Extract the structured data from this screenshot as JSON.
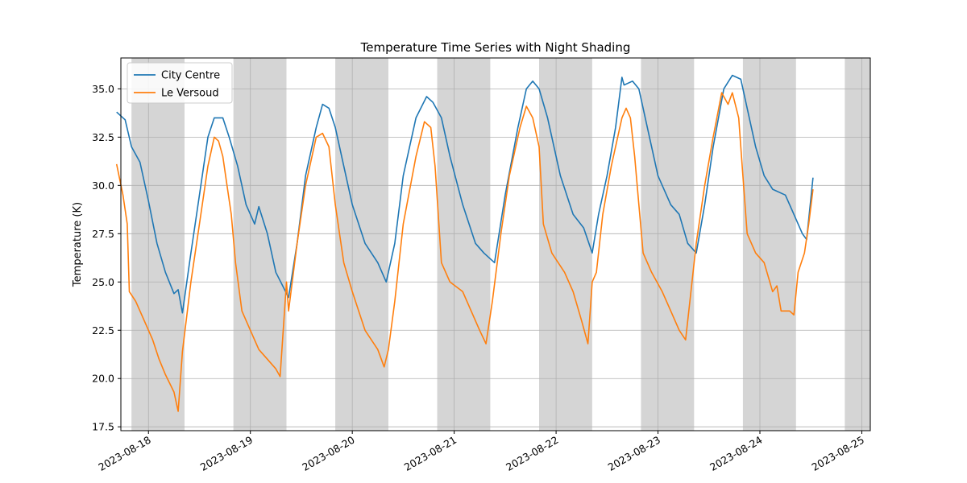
{
  "chart_data": {
    "type": "line",
    "title": "Temperature Time Series with Night Shading",
    "xlabel": "",
    "ylabel": "Temperature (K)",
    "x_range": [
      "2023-08-17T17:30",
      "2023-08-25T02:00"
    ],
    "ylim": [
      17.3,
      36.6
    ],
    "y_ticks": [
      17.5,
      20.0,
      22.5,
      25.0,
      27.5,
      30.0,
      32.5,
      35.0
    ],
    "y_tick_labels": [
      "17.5",
      "20.0",
      "22.5",
      "25.0",
      "27.5",
      "30.0",
      "32.5",
      "35.0"
    ],
    "x_ticks": [
      "2023-08-18",
      "2023-08-19",
      "2023-08-20",
      "2023-08-21",
      "2023-08-22",
      "2023-08-23",
      "2023-08-24",
      "2023-08-25"
    ],
    "grid": true,
    "legend_position": "top-left",
    "night_shading": [
      [
        "2023-08-17T20:00",
        "2023-08-18T08:30"
      ],
      [
        "2023-08-18T20:00",
        "2023-08-19T08:30"
      ],
      [
        "2023-08-19T20:00",
        "2023-08-20T08:30"
      ],
      [
        "2023-08-20T20:00",
        "2023-08-21T08:30"
      ],
      [
        "2023-08-21T20:00",
        "2023-08-22T08:30"
      ],
      [
        "2023-08-22T20:00",
        "2023-08-23T08:30"
      ],
      [
        "2023-08-23T20:00",
        "2023-08-24T08:30"
      ],
      [
        "2023-08-24T20:00",
        "2023-08-25T08:30"
      ]
    ],
    "shade_color": "#d3d3d3",
    "series": [
      {
        "name": "City Centre",
        "color": "#1f77b4",
        "points": [
          [
            "2023-08-17T16:30",
            33.8
          ],
          [
            "2023-08-17T18:30",
            33.4
          ],
          [
            "2023-08-17T20:00",
            32.0
          ],
          [
            "2023-08-17T22:00",
            31.2
          ],
          [
            "2023-08-18T00:00",
            29.2
          ],
          [
            "2023-08-18T02:00",
            27.0
          ],
          [
            "2023-08-18T04:00",
            25.5
          ],
          [
            "2023-08-18T06:00",
            24.4
          ],
          [
            "2023-08-18T07:00",
            24.6
          ],
          [
            "2023-08-18T08:00",
            23.4
          ],
          [
            "2023-08-18T10:00",
            26.5
          ],
          [
            "2023-08-18T12:00",
            29.5
          ],
          [
            "2023-08-18T14:00",
            32.5
          ],
          [
            "2023-08-18T15:30",
            33.5
          ],
          [
            "2023-08-18T17:30",
            33.5
          ],
          [
            "2023-08-18T19:00",
            32.5
          ],
          [
            "2023-08-18T21:00",
            31.0
          ],
          [
            "2023-08-18T23:00",
            29.0
          ],
          [
            "2023-08-19T01:00",
            28.0
          ],
          [
            "2023-08-19T02:00",
            28.9
          ],
          [
            "2023-08-19T04:00",
            27.5
          ],
          [
            "2023-08-19T06:00",
            25.5
          ],
          [
            "2023-08-19T09:00",
            24.2
          ],
          [
            "2023-08-19T11:00",
            27.0
          ],
          [
            "2023-08-19T13:00",
            30.5
          ],
          [
            "2023-08-19T15:30",
            33.0
          ],
          [
            "2023-08-19T17:00",
            34.2
          ],
          [
            "2023-08-19T18:30",
            34.0
          ],
          [
            "2023-08-19T20:00",
            33.0
          ],
          [
            "2023-08-19T22:00",
            31.0
          ],
          [
            "2023-08-20T00:00",
            29.0
          ],
          [
            "2023-08-20T03:00",
            27.0
          ],
          [
            "2023-08-20T06:00",
            26.0
          ],
          [
            "2023-08-20T08:00",
            25.0
          ],
          [
            "2023-08-20T10:00",
            27.0
          ],
          [
            "2023-08-20T12:00",
            30.5
          ],
          [
            "2023-08-20T15:00",
            33.5
          ],
          [
            "2023-08-20T17:30",
            34.6
          ],
          [
            "2023-08-20T19:00",
            34.3
          ],
          [
            "2023-08-20T21:00",
            33.5
          ],
          [
            "2023-08-20T23:00",
            31.5
          ],
          [
            "2023-08-21T02:00",
            29.0
          ],
          [
            "2023-08-21T05:00",
            27.0
          ],
          [
            "2023-08-21T07:00",
            26.5
          ],
          [
            "2023-08-21T09:30",
            26.0
          ],
          [
            "2023-08-21T12:00",
            29.5
          ],
          [
            "2023-08-21T15:00",
            33.0
          ],
          [
            "2023-08-21T17:00",
            35.0
          ],
          [
            "2023-08-21T18:30",
            35.4
          ],
          [
            "2023-08-21T20:00",
            35.0
          ],
          [
            "2023-08-21T22:00",
            33.5
          ],
          [
            "2023-08-22T01:00",
            30.5
          ],
          [
            "2023-08-22T04:00",
            28.5
          ],
          [
            "2023-08-22T06:30",
            27.8
          ],
          [
            "2023-08-22T08:30",
            26.5
          ],
          [
            "2023-08-22T10:00",
            28.5
          ],
          [
            "2023-08-22T12:00",
            30.5
          ],
          [
            "2023-08-22T14:00",
            33.0
          ],
          [
            "2023-08-22T15:30",
            35.6
          ],
          [
            "2023-08-22T16:00",
            35.2
          ],
          [
            "2023-08-22T18:00",
            35.4
          ],
          [
            "2023-08-22T19:30",
            35.0
          ],
          [
            "2023-08-22T21:00",
            33.5
          ],
          [
            "2023-08-23T00:00",
            30.5
          ],
          [
            "2023-08-23T03:00",
            29.0
          ],
          [
            "2023-08-23T05:00",
            28.5
          ],
          [
            "2023-08-23T07:00",
            27.0
          ],
          [
            "2023-08-23T09:00",
            26.5
          ],
          [
            "2023-08-23T11:00",
            29.0
          ],
          [
            "2023-08-23T13:00",
            32.0
          ],
          [
            "2023-08-23T15:30",
            35.0
          ],
          [
            "2023-08-23T17:30",
            35.7
          ],
          [
            "2023-08-23T19:30",
            35.5
          ],
          [
            "2023-08-23T21:00",
            34.0
          ],
          [
            "2023-08-23T23:00",
            32.0
          ],
          [
            "2023-08-24T01:00",
            30.5
          ],
          [
            "2023-08-24T03:00",
            29.8
          ],
          [
            "2023-08-24T06:00",
            29.5
          ],
          [
            "2023-08-24T08:00",
            28.5
          ],
          [
            "2023-08-24T10:00",
            27.5
          ],
          [
            "2023-08-24T11:00",
            27.2
          ],
          [
            "2023-08-24T12:30",
            30.4
          ]
        ]
      },
      {
        "name": "Le Versoud",
        "color": "#ff7f0e",
        "points": [
          [
            "2023-08-17T16:30",
            31.1
          ],
          [
            "2023-08-17T18:00",
            29.5
          ],
          [
            "2023-08-17T19:00",
            28.0
          ],
          [
            "2023-08-17T19:30",
            24.5
          ],
          [
            "2023-08-17T21:00",
            24.0
          ],
          [
            "2023-08-17T23:00",
            23.0
          ],
          [
            "2023-08-18T01:00",
            22.0
          ],
          [
            "2023-08-18T02:30",
            21.0
          ],
          [
            "2023-08-18T04:00",
            20.2
          ],
          [
            "2023-08-18T06:00",
            19.3
          ],
          [
            "2023-08-18T07:00",
            18.3
          ],
          [
            "2023-08-18T08:00",
            21.4
          ],
          [
            "2023-08-18T10:00",
            25.0
          ],
          [
            "2023-08-18T12:00",
            28.0
          ],
          [
            "2023-08-18T14:00",
            31.0
          ],
          [
            "2023-08-18T15:30",
            32.5
          ],
          [
            "2023-08-18T16:30",
            32.3
          ],
          [
            "2023-08-18T17:30",
            31.5
          ],
          [
            "2023-08-18T18:30",
            30.0
          ],
          [
            "2023-08-18T19:30",
            28.5
          ],
          [
            "2023-08-18T20:30",
            26.0
          ],
          [
            "2023-08-18T22:00",
            23.5
          ],
          [
            "2023-08-19T00:00",
            22.5
          ],
          [
            "2023-08-19T02:00",
            21.5
          ],
          [
            "2023-08-19T04:00",
            21.0
          ],
          [
            "2023-08-19T06:00",
            20.5
          ],
          [
            "2023-08-19T07:00",
            20.1
          ],
          [
            "2023-08-19T08:30",
            25.0
          ],
          [
            "2023-08-19T09:00",
            23.5
          ],
          [
            "2023-08-19T11:00",
            27.0
          ],
          [
            "2023-08-19T13:00",
            30.0
          ],
          [
            "2023-08-19T15:30",
            32.5
          ],
          [
            "2023-08-19T17:00",
            32.7
          ],
          [
            "2023-08-19T18:30",
            32.0
          ],
          [
            "2023-08-19T20:00",
            29.0
          ],
          [
            "2023-08-19T22:00",
            26.0
          ],
          [
            "2023-08-20T00:00",
            24.5
          ],
          [
            "2023-08-20T03:00",
            22.5
          ],
          [
            "2023-08-20T06:00",
            21.5
          ],
          [
            "2023-08-20T07:30",
            20.6
          ],
          [
            "2023-08-20T08:30",
            21.5
          ],
          [
            "2023-08-20T10:00",
            24.0
          ],
          [
            "2023-08-20T12:00",
            28.0
          ],
          [
            "2023-08-20T15:00",
            31.5
          ],
          [
            "2023-08-20T17:00",
            33.3
          ],
          [
            "2023-08-20T18:30",
            33.0
          ],
          [
            "2023-08-20T19:30",
            31.0
          ],
          [
            "2023-08-20T21:00",
            26.0
          ],
          [
            "2023-08-20T23:00",
            25.0
          ],
          [
            "2023-08-21T02:00",
            24.5
          ],
          [
            "2023-08-21T04:00",
            23.5
          ],
          [
            "2023-08-21T06:00",
            22.5
          ],
          [
            "2023-08-21T07:30",
            21.8
          ],
          [
            "2023-08-21T09:00",
            24.0
          ],
          [
            "2023-08-21T11:00",
            27.5
          ],
          [
            "2023-08-21T13:00",
            30.5
          ],
          [
            "2023-08-21T15:30",
            33.0
          ],
          [
            "2023-08-21T17:00",
            34.1
          ],
          [
            "2023-08-21T18:30",
            33.5
          ],
          [
            "2023-08-21T20:00",
            32.0
          ],
          [
            "2023-08-21T21:00",
            28.0
          ],
          [
            "2023-08-21T23:00",
            26.5
          ],
          [
            "2023-08-22T02:00",
            25.5
          ],
          [
            "2023-08-22T04:00",
            24.5
          ],
          [
            "2023-08-22T06:00",
            23.0
          ],
          [
            "2023-08-22T07:30",
            21.8
          ],
          [
            "2023-08-22T08:30",
            25.0
          ],
          [
            "2023-08-22T09:30",
            25.5
          ],
          [
            "2023-08-22T11:00",
            28.5
          ],
          [
            "2023-08-22T13:00",
            31.0
          ],
          [
            "2023-08-22T15:30",
            33.5
          ],
          [
            "2023-08-22T16:30",
            34.0
          ],
          [
            "2023-08-22T17:30",
            33.5
          ],
          [
            "2023-08-22T18:30",
            31.5
          ],
          [
            "2023-08-22T19:30",
            29.0
          ],
          [
            "2023-08-22T20:30",
            26.5
          ],
          [
            "2023-08-22T22:30",
            25.5
          ],
          [
            "2023-08-23T01:00",
            24.5
          ],
          [
            "2023-08-23T03:00",
            23.5
          ],
          [
            "2023-08-23T05:00",
            22.5
          ],
          [
            "2023-08-23T06:30",
            22.0
          ],
          [
            "2023-08-23T07:30",
            24.0
          ],
          [
            "2023-08-23T09:00",
            27.0
          ],
          [
            "2023-08-23T11:00",
            30.0
          ],
          [
            "2023-08-23T13:00",
            32.5
          ],
          [
            "2023-08-23T15:00",
            34.8
          ],
          [
            "2023-08-23T16:30",
            34.2
          ],
          [
            "2023-08-23T17:30",
            34.8
          ],
          [
            "2023-08-23T19:00",
            33.5
          ],
          [
            "2023-08-23T20:00",
            30.5
          ],
          [
            "2023-08-23T21:00",
            27.5
          ],
          [
            "2023-08-23T23:00",
            26.5
          ],
          [
            "2023-08-24T01:00",
            26.0
          ],
          [
            "2023-08-24T03:00",
            24.5
          ],
          [
            "2023-08-24T04:00",
            24.8
          ],
          [
            "2023-08-24T05:00",
            23.5
          ],
          [
            "2023-08-24T07:00",
            23.5
          ],
          [
            "2023-08-24T08:00",
            23.3
          ],
          [
            "2023-08-24T09:00",
            25.5
          ],
          [
            "2023-08-24T10:30",
            26.5
          ],
          [
            "2023-08-24T11:30",
            28.0
          ],
          [
            "2023-08-24T12:30",
            29.8
          ]
        ]
      }
    ]
  }
}
